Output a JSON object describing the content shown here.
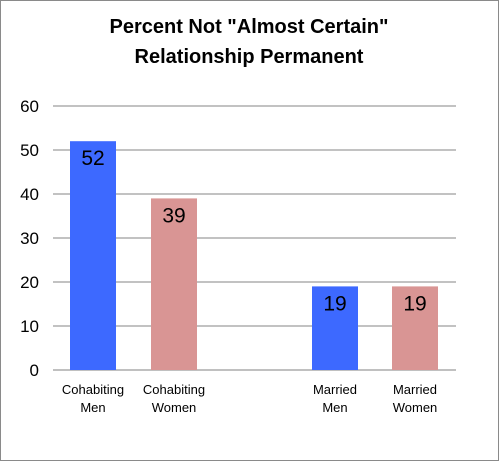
{
  "chart_data": {
    "type": "bar",
    "title_lines": [
      "Percent Not \"Almost Certain\"",
      "Relationship Permanent"
    ],
    "categories": [
      [
        "Cohabiting",
        "Men"
      ],
      [
        "Cohabiting",
        "Women"
      ],
      [
        "Married",
        "Men"
      ],
      [
        "Married",
        "Women"
      ]
    ],
    "values": [
      52,
      39,
      19,
      19
    ],
    "data_labels": [
      "52",
      "39",
      "19",
      "19"
    ],
    "bar_colors": [
      "#3d69ff",
      "#d99594",
      "#3d69ff",
      "#d99594"
    ],
    "ylim": [
      0,
      60
    ],
    "yticks": [
      0,
      10,
      20,
      30,
      40,
      50,
      60
    ],
    "grid": true,
    "legend": "none",
    "xlabel": "",
    "ylabel": ""
  }
}
